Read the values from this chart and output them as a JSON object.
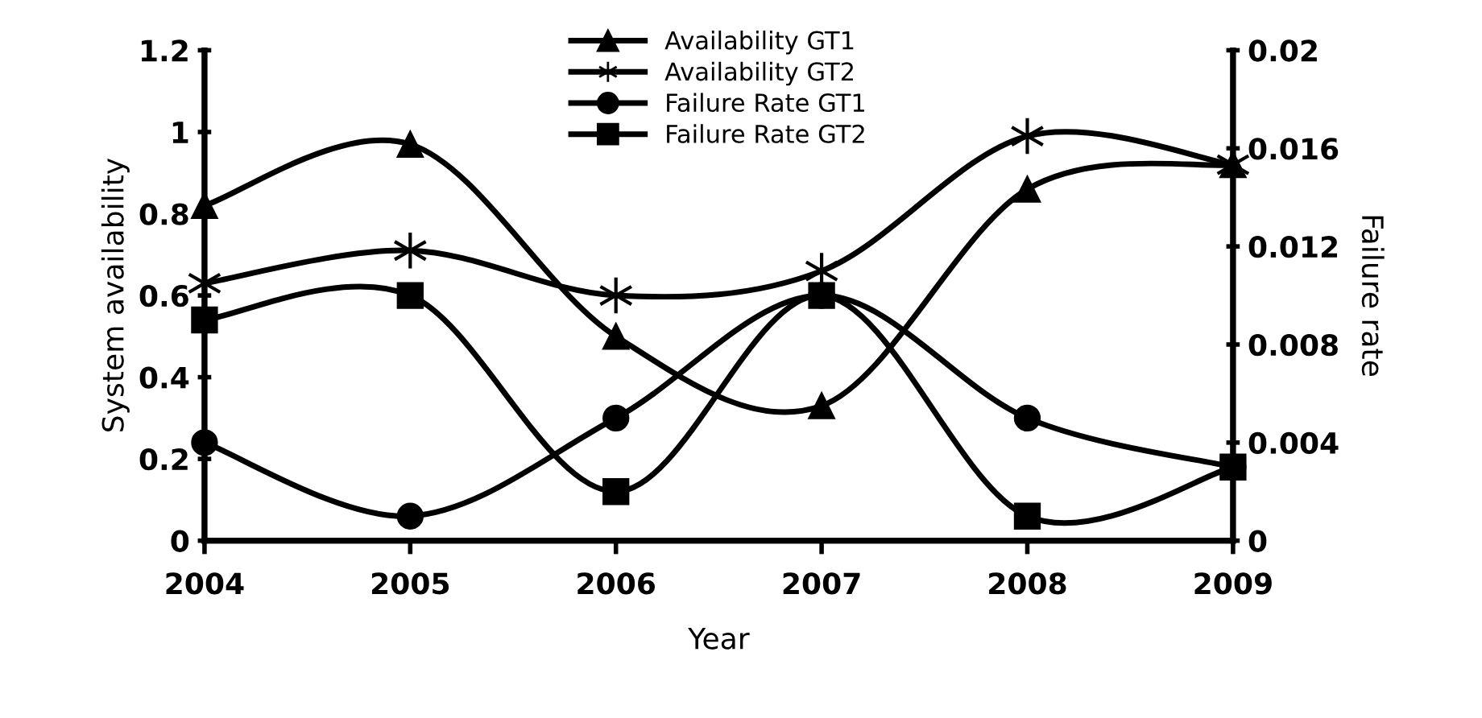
{
  "chart_data": {
    "type": "line",
    "xlabel": "Year",
    "ylabel": "System availability",
    "y2label": "Failure rate",
    "categories": [
      "2004",
      "2005",
      "2006",
      "2007",
      "2008",
      "2009"
    ],
    "series": [
      {
        "name": "Availability GT1",
        "color": "#000000",
        "marker": "triangle",
        "values": [
          0.82,
          0.97,
          0.5,
          0.33,
          0.86,
          0.92
        ]
      },
      {
        "name": "Availability GT2",
        "color": "#000000",
        "marker": "cross",
        "values": [
          0.63,
          0.71,
          0.6,
          0.66,
          0.99,
          0.92
        ]
      },
      {
        "name": "Failure Rate GT1",
        "color": "#000000",
        "marker": "circle",
        "axis": "y2",
        "values": [
          0.004,
          0.001,
          0.005,
          0.01,
          0.005,
          0.003
        ]
      },
      {
        "name": "Failure Rate GT2",
        "color": "#000000",
        "marker": "square",
        "axis": "y2",
        "values": [
          0.009,
          0.01,
          0.002,
          0.01,
          0.001,
          0.003
        ]
      }
    ],
    "ylim": [
      0,
      1.2
    ],
    "yticks": [
      0,
      0.2,
      0.4,
      0.6,
      0.8,
      1,
      1.2
    ],
    "y2lim": [
      0,
      0.02
    ],
    "y2ticks": [
      0,
      0.004,
      0.008,
      0.012,
      0.016,
      0.02
    ],
    "grid": false,
    "legend": "top",
    "line_style": "solid"
  }
}
